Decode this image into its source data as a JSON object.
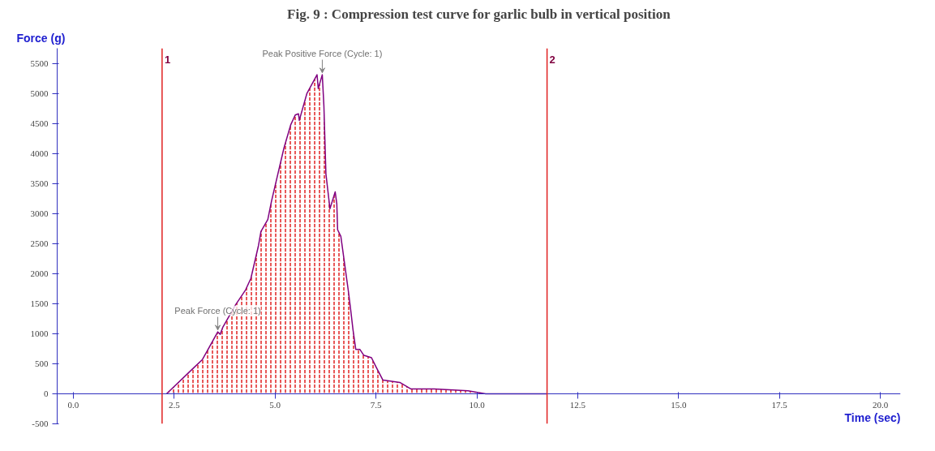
{
  "chart_data": {
    "type": "area",
    "title": "Fig. 9 : Compression test curve for garlic bulb in vertical position",
    "xlabel": "Time (sec)",
    "ylabel": "Force (g)",
    "xlim": [
      -0.4,
      20.5
    ],
    "xticks": [
      {
        "value": 0,
        "label": "0.0"
      },
      {
        "value": 2.5,
        "label": "2.5"
      },
      {
        "value": 5,
        "label": "5.0"
      },
      {
        "value": 7.5,
        "label": "7.5"
      },
      {
        "value": 10,
        "label": "10.0"
      },
      {
        "value": 12.5,
        "label": "12.5"
      },
      {
        "value": 15,
        "label": "15.0"
      },
      {
        "value": 17.5,
        "label": "17.5"
      },
      {
        "value": 20,
        "label": "20.0"
      }
    ],
    "ylim": [
      -500,
      5750
    ],
    "yticks": [
      -500,
      0,
      500,
      1000,
      1500,
      2000,
      2500,
      3000,
      3500,
      4000,
      4500,
      5000,
      5500
    ],
    "grid": false,
    "marker": "none",
    "line_style": "solid",
    "series": [
      {
        "color": "#800080",
        "x": [
          2.31,
          2.98,
          3.2,
          3.58,
          3.64,
          3.7,
          4.02,
          4.27,
          4.4,
          4.59,
          4.65,
          4.82,
          4.91,
          5.22,
          5.39,
          5.5,
          5.58,
          5.6,
          5.79,
          6.04,
          6.07,
          6.17,
          6.21,
          6.26,
          6.36,
          6.49,
          6.53,
          6.55,
          6.63,
          6.82,
          6.87,
          6.93,
          7.0,
          7.1,
          7.2,
          7.39,
          7.5,
          7.67,
          8.09,
          8.37,
          8.94,
          9.78,
          10.22,
          11.74
        ],
        "values": [
          0,
          430,
          570,
          1030,
          990,
          1100,
          1480,
          1730,
          1920,
          2470,
          2700,
          2900,
          3200,
          4090,
          4480,
          4640,
          4660,
          4550,
          5000,
          5310,
          5080,
          5310,
          4790,
          3660,
          3080,
          3360,
          3160,
          2730,
          2620,
          1690,
          1420,
          1070,
          740,
          740,
          640,
          600,
          450,
          230,
          190,
          80,
          80,
          50,
          0,
          0
        ]
      }
    ],
    "ref_lines": [
      {
        "axis": "x",
        "value": 2.2,
        "color": "#e02020"
      },
      {
        "axis": "x",
        "value": 11.74,
        "color": "#e02020"
      }
    ],
    "annotations": [
      {
        "text": "Peak Positive Force (Cycle: 1)",
        "x": 6.17,
        "y": 5310
      },
      {
        "text": "Peak Force (Cycle: 1)",
        "x": 3.58,
        "y": 1030
      },
      {
        "text": "1",
        "x": 2.2,
        "y": 5750
      },
      {
        "text": "2",
        "x": 11.74,
        "y": 5750
      }
    ]
  }
}
